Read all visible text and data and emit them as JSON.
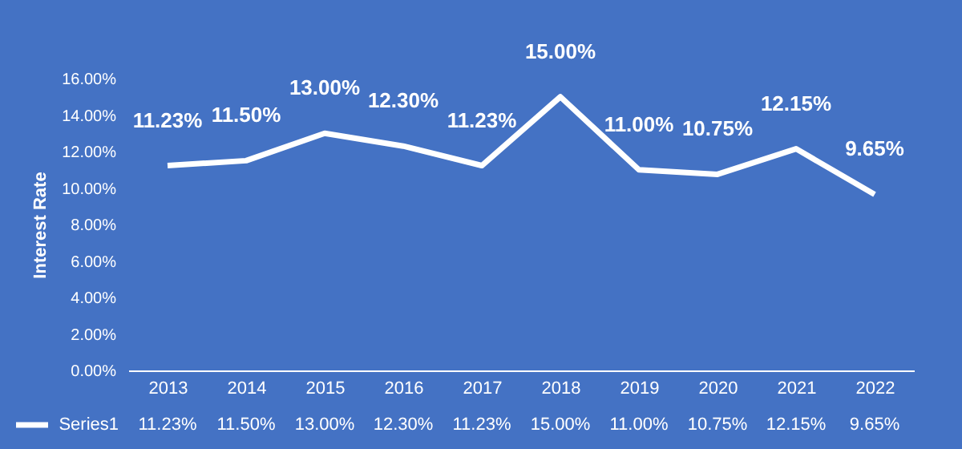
{
  "chart_data": {
    "type": "line",
    "ylabel": "Interest Rate",
    "categories": [
      "2013",
      "2014",
      "2015",
      "2016",
      "2017",
      "2018",
      "2019",
      "2020",
      "2021",
      "2022"
    ],
    "series": [
      {
        "name": "Series1",
        "color": "#ffffff",
        "values": [
          11.23,
          11.5,
          13.0,
          12.3,
          11.23,
          15.0,
          11.0,
          10.75,
          12.15,
          9.65
        ],
        "value_labels": [
          "11.23%",
          "11.50%",
          "13.00%",
          "12.30%",
          "11.23%",
          "15.00%",
          "11.00%",
          "10.75%",
          "12.15%",
          "9.65%"
        ]
      }
    ],
    "ylim": [
      0,
      16
    ],
    "yticks": [
      {
        "value": 0,
        "label": "0.00%"
      },
      {
        "value": 2,
        "label": "2.00%"
      },
      {
        "value": 4,
        "label": "4.00%"
      },
      {
        "value": 6,
        "label": "6.00%"
      },
      {
        "value": 8,
        "label": "8.00%"
      },
      {
        "value": 10,
        "label": "10.00%"
      },
      {
        "value": 12,
        "label": "12.00%"
      },
      {
        "value": 14,
        "label": "14.00%"
      },
      {
        "value": 16,
        "label": "16.00%"
      }
    ],
    "grid": false,
    "legend": "bottom",
    "marker": "none",
    "line_style": "solid"
  }
}
